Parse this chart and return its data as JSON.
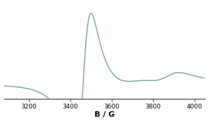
{
  "title": "",
  "xlabel": "B / G",
  "ylabel": "",
  "xlim": [
    3080,
    4050
  ],
  "x_ticks": [
    3200,
    3400,
    3600,
    3800,
    4000
  ],
  "background_color": "#ffffff",
  "line_color": "#7a9ea0",
  "line_width": 1.0,
  "figsize": [
    3.03,
    1.85
  ],
  "dpi": 100,
  "ylim": [
    -0.22,
    1.1
  ],
  "spine_color": "#555555",
  "tick_fontsize": 6.5,
  "xlabel_fontsize": 8
}
